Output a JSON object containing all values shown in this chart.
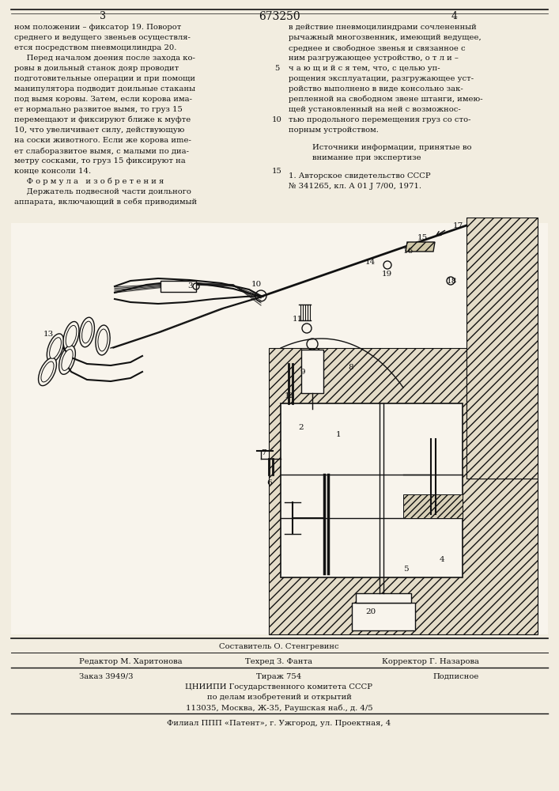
{
  "patent_number": "673250",
  "page_left": "3",
  "page_right": "4",
  "bg_color": "#f2ede0",
  "text_color": "#111111",
  "col_left_lines": [
    "ном положении – фиксатор 19. Поворот",
    "среднего и ведущего звеньев осуществля-",
    "ется посредством пневмоцилиндра 20.",
    "     Перед началом доения после захода ко-",
    "ровы в доильный станок дояр проводит",
    "подготовительные операции и при помощи",
    "манипулятора подводит доильные стаканы",
    "под вымя коровы. Затем, если корова имa-",
    "ет нормально развитое вымя, то груз 15",
    "перемещают и фиксируют ближе к муфте",
    "10, что увеличивает силу, действующую",
    "на соски животного. Если же корова иmе-",
    "ет слаборазвитое вымя, с малыми по диа-",
    "метру сосками, то груз 15 фиксируют на",
    "конце консоли 14.",
    "     Ф о р м у л а   и з о б р е т е н и я",
    "     Держатель подвесной части доильного",
    "аппарата, включающий в себя приводимый"
  ],
  "col_right_lines": [
    "в действие пневмоцилиндрами сочлененный",
    "рычажный многозвенник, имеющий ведущее,",
    "среднее и свободное звенья и связанное с",
    "ним разгружающее устройство, о т л и –",
    "ч а ю щ и й с я тем, что, с целью уп-",
    "рощения эксплуатации, разгружающее уст-",
    "ройство выполнено в виде консольно зак-",
    "репленной на свободном звене штанги, имею-",
    "щей установленный на ней с возможнос-",
    "тью продольного перемещения груз со сто-",
    "порным устройством."
  ],
  "sources_header": "Источники информации, принятые во",
  "sources_subheader": "внимание при экспертизе",
  "source1": "1. Авторское свидетельство СССР",
  "source1b": "№ 341265, кл. А 01 J 7/00, 1971.",
  "composer_line": "Составитель О. Стенгревинс",
  "editor_left": "Редактор М. Харитонова",
  "editor_mid": "Техред З. Фанта",
  "editor_right": "Корректор Г. Назарова",
  "order_left": "Заказ 3949/3",
  "order_mid": "Тираж 754",
  "order_right": "Подписное",
  "org_line1": "ЦНИИПИ Государственного комитета СССР",
  "org_line2": "по делам изобретений и открытий",
  "org_line3": "113035, Москва, Ж-35, Раушская наб., д. 4/5",
  "branch_line": "Филиал ППП «Патент», г. Ужгород, ул. Проектная, 4",
  "diag_bg": "#f8f4ec",
  "hatch_color": "#c8b888"
}
